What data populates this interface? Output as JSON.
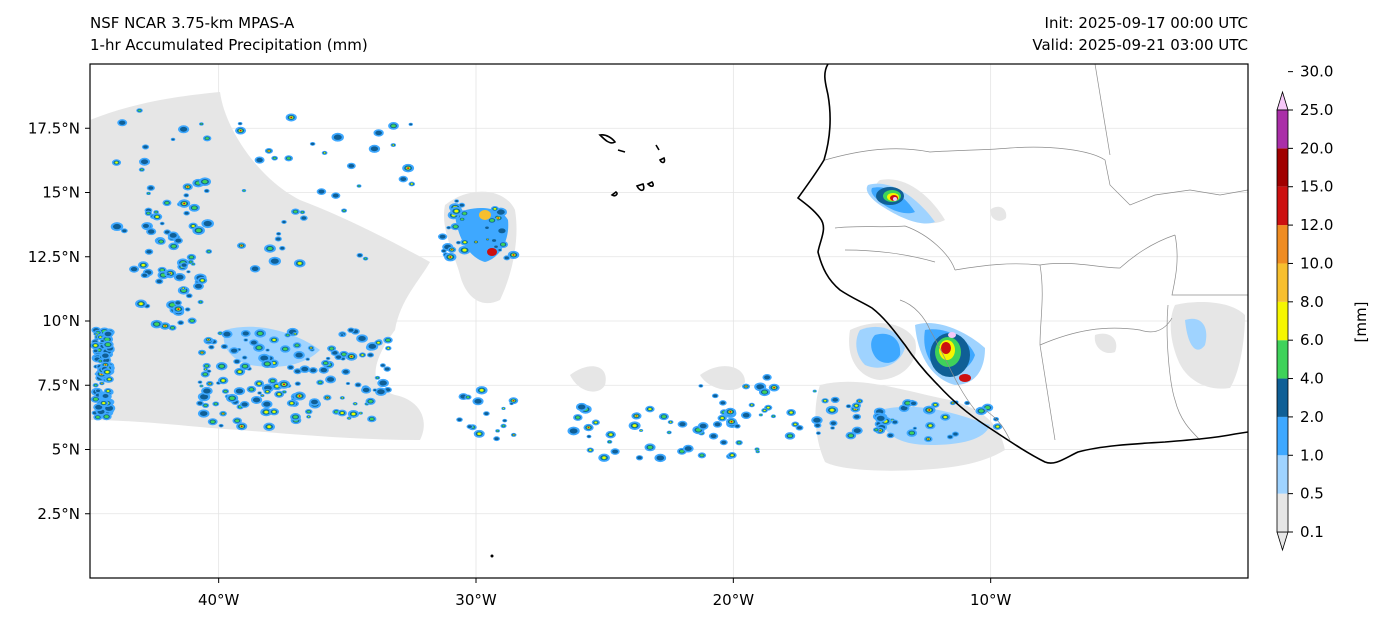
{
  "header": {
    "model": "NSF NCAR 3.75-km MPAS-A",
    "field": "1-hr Accumulated Precipitation (mm)",
    "init": "Init: 2025-09-17 00:00 UTC",
    "valid": "Valid: 2025-09-21 03:00 UTC"
  },
  "map": {
    "lon_range": [
      -45,
      0
    ],
    "lat_range": [
      0,
      20
    ],
    "lon_ticks": [
      {
        "value": -40,
        "label": "40°W"
      },
      {
        "value": -30,
        "label": "30°W"
      },
      {
        "value": -20,
        "label": "20°W"
      },
      {
        "value": -10,
        "label": "10°W"
      }
    ],
    "lat_ticks": [
      {
        "value": 2.5,
        "label": "2.5°N"
      },
      {
        "value": 5,
        "label": "5°N"
      },
      {
        "value": 7.5,
        "label": "7.5°N"
      },
      {
        "value": 10,
        "label": "10°N"
      },
      {
        "value": 12.5,
        "label": "12.5°N"
      },
      {
        "value": 15,
        "label": "15°N"
      },
      {
        "value": 17.5,
        "label": "17.5°N"
      }
    ],
    "gridlines": true
  },
  "colorbar": {
    "label": "[mm]",
    "levels": [
      {
        "value": "0.1",
        "color": "#e6e6e6"
      },
      {
        "value": "0.5",
        "color": "#9fd3ff"
      },
      {
        "value": "1.0",
        "color": "#3ea8ff"
      },
      {
        "value": "2.0",
        "color": "#0f5f96"
      },
      {
        "value": "4.0",
        "color": "#3fd25a"
      },
      {
        "value": "6.0",
        "color": "#f6f600"
      },
      {
        "value": "8.0",
        "color": "#f7bf2e"
      },
      {
        "value": "10.0",
        "color": "#ef8c22"
      },
      {
        "value": "12.0",
        "color": "#cc1010"
      },
      {
        "value": "15.0",
        "color": "#a00000"
      },
      {
        "value": "20.0",
        "color": "#aa2ea8"
      },
      {
        "value": "25.0",
        "color": "#f6c8f8"
      },
      {
        "value": "30.0",
        "color": ""
      }
    ]
  }
}
